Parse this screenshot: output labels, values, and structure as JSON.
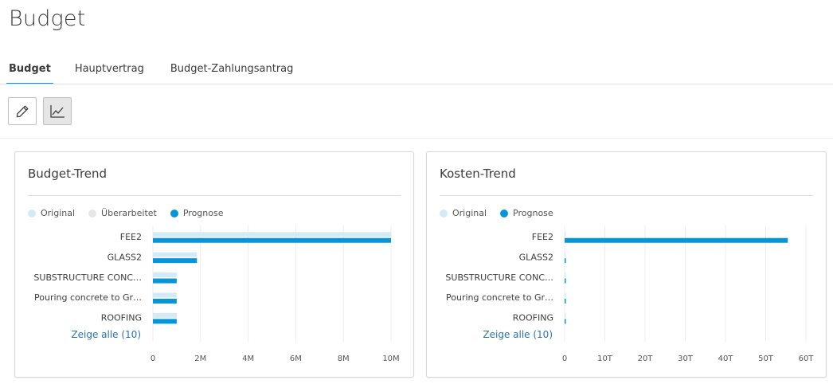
{
  "page": {
    "title": "Budget"
  },
  "tabs": [
    {
      "label": "Budget",
      "active": true
    },
    {
      "label": "Hauptvertrag",
      "active": false
    },
    {
      "label": "Budget-Zahlungsantrag",
      "active": false
    }
  ],
  "toolbar": {
    "edit_icon": "pencil-icon",
    "chart_icon": "line-chart-icon"
  },
  "colors": {
    "original": "#d3ebf7",
    "ueberarbeitet": "#e6e6e6",
    "prognose": "#0696d7"
  },
  "budget_trend": {
    "title": "Budget-Trend",
    "legend": [
      "Original",
      "Überarbeitet",
      "Prognose"
    ],
    "show_all": "Zeige alle (10)"
  },
  "kosten_trend": {
    "title": "Kosten-Trend",
    "legend": [
      "Original",
      "Prognose"
    ],
    "show_all": "Zeige alle (10)"
  },
  "chart_data": [
    {
      "type": "bar",
      "orientation": "horizontal",
      "title": "Budget-Trend",
      "categories": [
        "FEE2",
        "GLASS2",
        "SUBSTRUCTURE CONC…",
        "Pouring concrete to Gr…",
        "ROOFING"
      ],
      "series": [
        {
          "name": "Original",
          "values": [
            10000000,
            1850000,
            1000000,
            1000000,
            1000000
          ]
        },
        {
          "name": "Überarbeitet",
          "values": [
            0,
            0,
            0,
            0,
            0
          ]
        },
        {
          "name": "Prognose",
          "values": [
            10000000,
            1850000,
            1000000,
            1000000,
            1000000
          ]
        }
      ],
      "xlim": [
        0,
        10000000
      ],
      "xticks": [
        "0",
        "2M",
        "4M",
        "6M",
        "8M",
        "10M"
      ],
      "legend_position": "top-left",
      "grid": true
    },
    {
      "type": "bar",
      "orientation": "horizontal",
      "title": "Kosten-Trend",
      "categories": [
        "FEE2",
        "GLASS2",
        "SUBSTRUCTURE CONC…",
        "Pouring concrete to Gr…",
        "ROOFING"
      ],
      "series": [
        {
          "name": "Original",
          "values": [
            300,
            200,
            200,
            200,
            200
          ]
        },
        {
          "name": "Prognose",
          "values": [
            55500,
            300,
            300,
            300,
            300
          ]
        }
      ],
      "xlim": [
        0,
        60000
      ],
      "xticks": [
        "0",
        "10T",
        "20T",
        "30T",
        "40T",
        "50T",
        "60T"
      ],
      "legend_position": "top-left",
      "grid": true
    }
  ]
}
